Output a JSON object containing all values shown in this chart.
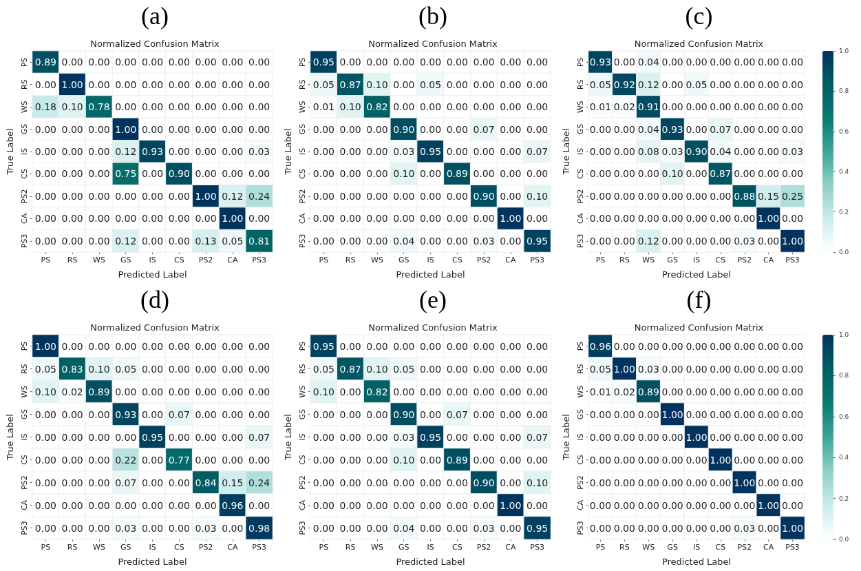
{
  "chart_data": [
    {
      "type": "heatmap",
      "title": "(a)",
      "subtitle": "Normalized Confusion Matrix",
      "xlabel": "Predicted Label",
      "ylabel": "True Label",
      "categories": [
        "PS",
        "RS",
        "WS",
        "GS",
        "IS",
        "CS",
        "PS2",
        "CA",
        "PS3"
      ],
      "y_categories": [
        "PS",
        "RS",
        "WS",
        "GS",
        "IS",
        "CS",
        "PS2",
        "CA",
        "PS3"
      ],
      "cells": [
        [
          0.89,
          0,
          0,
          0,
          0,
          0,
          0,
          0,
          0
        ],
        [
          0,
          1,
          0,
          0,
          0,
          0,
          0,
          0,
          0
        ],
        [
          0.18,
          0.1,
          0.78,
          0,
          0,
          0,
          0,
          0,
          0
        ],
        [
          0,
          0,
          0,
          1,
          0,
          0,
          0,
          0,
          0
        ],
        [
          0,
          0,
          0,
          0.12,
          0.93,
          0,
          0,
          0,
          0.03
        ],
        [
          0,
          0,
          0,
          0.75,
          0,
          0.9,
          0,
          0,
          0
        ],
        [
          0,
          0,
          0,
          0,
          0,
          0,
          1,
          0.12,
          0.24
        ],
        [
          0,
          0,
          0,
          0,
          0,
          0,
          0,
          1,
          0
        ],
        [
          0,
          0,
          0,
          0.12,
          0,
          0,
          0.13,
          0.05,
          0.81
        ]
      ],
      "cell_labels": [
        [
          "0.89",
          "0.00",
          "0.00",
          "0.00",
          "0.00",
          "0.00",
          "0.00",
          "0.00",
          "0.00"
        ],
        [
          "0.00",
          "1.00",
          "0.00",
          "0.00",
          "0.00",
          "0.00",
          "0.00",
          "0.00",
          "0.00"
        ],
        [
          "0.18",
          "0.10",
          "0.78",
          "0.00",
          "0.00",
          "0.00",
          "0.00",
          "0.00",
          "0.00"
        ],
        [
          "0.00",
          "0.00",
          "0.00",
          "1.00",
          "0.00",
          "0.00",
          "0.00",
          "0.00",
          "0.00"
        ],
        [
          "0.00",
          "0.00",
          "0.00",
          "0.12",
          "0.93",
          "0.00",
          "0.00",
          "0.00",
          "0.03"
        ],
        [
          "0.00",
          "0.00",
          "0.00",
          "0.75",
          "0.00",
          "0.90",
          "0.00",
          "0.00",
          "0.00"
        ],
        [
          "0.00",
          "0.00",
          "0.00",
          "0.00",
          "0.00",
          "0.00",
          "1.00",
          "0.12",
          "0.24"
        ],
        [
          "0.00",
          "0.00",
          "0.00",
          "0.00",
          "0.00",
          "0.00",
          "0.00",
          "1.00",
          "0.00"
        ],
        [
          "0.00",
          "0.00",
          "0.00",
          "0.12",
          "0.00",
          "0.00",
          "0.13",
          "0.05",
          "0.81"
        ]
      ]
    },
    {
      "type": "heatmap",
      "title": "(b)",
      "subtitle": "Normalized Confusion Matrix",
      "xlabel": "Predicted Label",
      "ylabel": "True Label",
      "categories": [
        "PS",
        "RS",
        "WS",
        "GS",
        "IS",
        "CS",
        "PS2",
        "CA",
        "PS3"
      ],
      "y_categories": [
        "PS",
        "RS",
        "WS",
        "GS",
        "IS",
        "CS",
        "PS2",
        "CA",
        "PS3"
      ],
      "cells": [
        [
          0.95,
          0,
          0,
          0,
          0,
          0,
          0,
          0,
          0
        ],
        [
          0.05,
          0.87,
          0.1,
          0,
          0.05,
          0,
          0,
          0,
          0
        ],
        [
          0.01,
          0.1,
          0.82,
          0,
          0,
          0,
          0,
          0,
          0
        ],
        [
          0,
          0,
          0,
          0.9,
          0,
          0,
          0.07,
          0,
          0
        ],
        [
          0,
          0,
          0,
          0.03,
          0.95,
          0,
          0,
          0,
          0.07
        ],
        [
          0,
          0,
          0,
          0.1,
          0,
          0.89,
          0,
          0,
          0
        ],
        [
          0,
          0,
          0,
          0,
          0,
          0,
          0.9,
          0,
          0.1
        ],
        [
          0,
          0,
          0,
          0,
          0,
          0,
          0,
          1,
          0
        ],
        [
          0,
          0,
          0,
          0.04,
          0,
          0,
          0.03,
          0,
          0.95
        ]
      ],
      "cell_labels": [
        [
          "0.95",
          "0.00",
          "0.00",
          "0.00",
          "0.00",
          "0.00",
          "0.00",
          "0.00",
          "0.00"
        ],
        [
          "0.05",
          "0.87",
          "0.10",
          "0.00",
          "0.05",
          "0.00",
          "0.00",
          "0.00",
          "0.00"
        ],
        [
          "0.01",
          "0.10",
          "0.82",
          "0.00",
          "0.00",
          "0.00",
          "0.00",
          "0.00",
          "0.00"
        ],
        [
          "0.00",
          "0.00",
          "0.00",
          "0.90",
          "0.00",
          "0.00",
          "0.07",
          "0.00",
          "0.00"
        ],
        [
          "0.00",
          "0.00",
          "0.00",
          "0.03",
          "0.95",
          "0.00",
          "0.00",
          "0.00",
          "0.07"
        ],
        [
          "0.00",
          "0.00",
          "0.00",
          "0.10",
          "0.00",
          "0.89",
          "0.00",
          "0.00",
          "0.00"
        ],
        [
          "0.00",
          "0.00",
          "0.00",
          "0.00",
          "0.00",
          "0.00",
          "0.90",
          "0.00",
          "0.10"
        ],
        [
          "0.00",
          "0.00",
          "0.00",
          "0.00",
          "0.00",
          "0.00",
          "0.00",
          "1.00",
          "0.00"
        ],
        [
          "0.00",
          "0.00",
          "0.00",
          "0.04",
          "0.00",
          "0.00",
          "0.03",
          "0.00",
          "0.95"
        ]
      ]
    },
    {
      "type": "heatmap",
      "title": "(c)",
      "subtitle": "Normalized Confusion Matrix",
      "xlabel": "Predicted Label",
      "ylabel": "True Label",
      "categories": [
        "PS",
        "RS",
        "WS",
        "GS",
        "IS",
        "CS",
        "PS2",
        "CA",
        "PS3"
      ],
      "y_categories": [
        "PS",
        "RS",
        "WS",
        "GS",
        "IS",
        "CS",
        "PS2",
        "CA",
        "PS3"
      ],
      "cells": [
        [
          0.93,
          0,
          0.04,
          0,
          0,
          0,
          0,
          0,
          0
        ],
        [
          0.05,
          0.92,
          0.12,
          0,
          0.05,
          0,
          0,
          0,
          0
        ],
        [
          0.01,
          0.02,
          0.91,
          0,
          0,
          0,
          0,
          0,
          0
        ],
        [
          0,
          0,
          0.04,
          0.93,
          0,
          0.07,
          0,
          0,
          0
        ],
        [
          0,
          0,
          0.08,
          0.03,
          0.9,
          0.04,
          0,
          0,
          0.03
        ],
        [
          0,
          0,
          0,
          0.1,
          0,
          0.87,
          0,
          0,
          0
        ],
        [
          0,
          0,
          0,
          0,
          0,
          0,
          0.88,
          0.15,
          0.25
        ],
        [
          0,
          0,
          0,
          0,
          0,
          0,
          0,
          1,
          0
        ],
        [
          0,
          0,
          0.12,
          0,
          0,
          0,
          0.03,
          0,
          1
        ]
      ],
      "cell_labels": [
        [
          "0.93",
          "0.00",
          "0.04",
          "0.00",
          "0.00",
          "0.00",
          "0.00",
          "0.00",
          "0.00"
        ],
        [
          "0.05",
          "0.92",
          "0.12",
          "0.00",
          "0.05",
          "0.00",
          "0.00",
          "0.00",
          "0.00"
        ],
        [
          "0.01",
          "0.02",
          "0.91",
          "0.00",
          "0.00",
          "0.00",
          "0.00",
          "0.00",
          "0.00"
        ],
        [
          "0.00",
          "0.00",
          "0.04",
          "0.93",
          "0.00",
          "0.07",
          "0.00",
          "0.00",
          "0.00"
        ],
        [
          "0.00",
          "0.00",
          "0.08",
          "0.03",
          "0.90",
          "0.04",
          "0.00",
          "0.00",
          "0.03"
        ],
        [
          "0.00",
          "0.00",
          "0.00",
          "0.10",
          "0.00",
          "0.87",
          "0.00",
          "0.00",
          "0.00"
        ],
        [
          "0.00",
          "0.00",
          "0.00",
          "0.00",
          "0.00",
          "0.00",
          "0.88",
          "0.15",
          "0.25"
        ],
        [
          "0.00",
          "0.00",
          "0.00",
          "0.00",
          "0.00",
          "0.00",
          "0.00",
          "1.00",
          "0.00"
        ],
        [
          "0.00",
          "0.00",
          "0.12",
          "0.00",
          "0.00",
          "0.00",
          "0.03",
          "0.00",
          "1.00"
        ]
      ],
      "clim": [
        0,
        1
      ],
      "cticks": [
        {
          "value": 0,
          "label": "0.0"
        },
        {
          "value": 0.2,
          "label": "0.2"
        },
        {
          "value": 0.4,
          "label": "0.4"
        },
        {
          "value": 0.6,
          "label": "0.6"
        },
        {
          "value": 0.8,
          "label": "0.8"
        },
        {
          "value": 1,
          "label": "1.0"
        }
      ]
    },
    {
      "type": "heatmap",
      "title": "(d)",
      "subtitle": "Normalized Confusion Matrix",
      "xlabel": "Predicted Label",
      "ylabel": "True Label",
      "categories": [
        "PS",
        "RS",
        "WS",
        "GS",
        "IS",
        "CS",
        "PS2",
        "CA",
        "PS3"
      ],
      "y_categories": [
        "PS",
        "RS",
        "WS",
        "GS",
        "IS",
        "CS",
        "PS2",
        "CA",
        "PS3"
      ],
      "cells": [
        [
          1,
          0,
          0,
          0,
          0,
          0,
          0,
          0,
          0
        ],
        [
          0.05,
          0.83,
          0.1,
          0.05,
          0,
          0,
          0,
          0,
          0
        ],
        [
          0.1,
          0.02,
          0.89,
          0,
          0,
          0,
          0,
          0,
          0
        ],
        [
          0,
          0,
          0,
          0.93,
          0,
          0.07,
          0,
          0,
          0
        ],
        [
          0,
          0,
          0,
          0,
          0.95,
          0,
          0,
          0,
          0.07
        ],
        [
          0,
          0,
          0,
          0.22,
          0,
          0.77,
          0,
          0,
          0
        ],
        [
          0,
          0,
          0,
          0.07,
          0,
          0,
          0.84,
          0.15,
          0.24
        ],
        [
          0,
          0,
          0,
          0,
          0,
          0,
          0,
          0.96,
          0
        ],
        [
          0,
          0,
          0,
          0.03,
          0,
          0,
          0.03,
          0,
          0.98
        ]
      ],
      "cell_labels": [
        [
          "1.00",
          "0.00",
          "0.00",
          "0.00",
          "0.00",
          "0.00",
          "0.00",
          "0.00",
          "0.00"
        ],
        [
          "0.05",
          "0.83",
          "0.10",
          "0.05",
          "0.00",
          "0.00",
          "0.00",
          "0.00",
          "0.00"
        ],
        [
          "0.10",
          "0.02",
          "0.89",
          "0.00",
          "0.00",
          "0.00",
          "0.00",
          "0.00",
          "0.00"
        ],
        [
          "0.00",
          "0.00",
          "0.00",
          "0.93",
          "0.00",
          "0.07",
          "0.00",
          "0.00",
          "0.00"
        ],
        [
          "0.00",
          "0.00",
          "0.00",
          "0.00",
          "0.95",
          "0.00",
          "0.00",
          "0.00",
          "0.07"
        ],
        [
          "0.00",
          "0.00",
          "0.00",
          "0.22",
          "0.00",
          "0.77",
          "0.00",
          "0.00",
          "0.00"
        ],
        [
          "0.00",
          "0.00",
          "0.00",
          "0.07",
          "0.00",
          "0.00",
          "0.84",
          "0.15",
          "0.24"
        ],
        [
          "0.00",
          "0.00",
          "0.00",
          "0.00",
          "0.00",
          "0.00",
          "0.00",
          "0.96",
          "0.00"
        ],
        [
          "0.00",
          "0.00",
          "0.00",
          "0.03",
          "0.00",
          "0.00",
          "0.03",
          "0.00",
          "0.98"
        ]
      ]
    },
    {
      "type": "heatmap",
      "title": "(e)",
      "subtitle": "Normalized Confusion Matrix",
      "xlabel": "Predicted Label",
      "ylabel": "True Label",
      "categories": [
        "PS",
        "RS",
        "WS",
        "GS",
        "IS",
        "CS",
        "PS2",
        "CA",
        "PS3"
      ],
      "y_categories": [
        "PS",
        "RS",
        "WS",
        "GS",
        "IS",
        "CS",
        "PS2",
        "CA",
        "PS3"
      ],
      "cells": [
        [
          0.95,
          0,
          0,
          0,
          0,
          0,
          0,
          0,
          0
        ],
        [
          0.05,
          0.87,
          0.1,
          0.05,
          0,
          0,
          0,
          0,
          0
        ],
        [
          0.1,
          0,
          0.82,
          0,
          0,
          0,
          0,
          0,
          0
        ],
        [
          0,
          0,
          0,
          0.9,
          0,
          0.07,
          0,
          0,
          0
        ],
        [
          0,
          0,
          0,
          0.03,
          0.95,
          0,
          0,
          0,
          0.07
        ],
        [
          0,
          0,
          0,
          0.1,
          0,
          0.89,
          0,
          0,
          0
        ],
        [
          0,
          0,
          0,
          0,
          0,
          0,
          0.9,
          0,
          0.1
        ],
        [
          0,
          0,
          0,
          0,
          0,
          0,
          0,
          1,
          0
        ],
        [
          0,
          0,
          0,
          0.04,
          0,
          0,
          0.03,
          0,
          0.95
        ]
      ],
      "cell_labels": [
        [
          "0.95",
          "0.00",
          "0.00",
          "0.00",
          "0.00",
          "0.00",
          "0.00",
          "0.00",
          "0.00"
        ],
        [
          "0.05",
          "0.87",
          "0.10",
          "0.05",
          "0.00",
          "0.00",
          "0.00",
          "0.00",
          "0.00"
        ],
        [
          "0.10",
          "0.00",
          "0.82",
          "0.00",
          "0.00",
          "0.00",
          "0.00",
          "0.00",
          "0.00"
        ],
        [
          "0.00",
          "0.00",
          "0.00",
          "0.90",
          "0.00",
          "0.07",
          "0.00",
          "0.00",
          "0.00"
        ],
        [
          "0.00",
          "0.00",
          "0.00",
          "0.03",
          "0.95",
          "0.00",
          "0.00",
          "0.00",
          "0.07"
        ],
        [
          "0.00",
          "0.00",
          "0.00",
          "0.10",
          "0.00",
          "0.89",
          "0.00",
          "0.00",
          "0.00"
        ],
        [
          "0.00",
          "0.00",
          "0.00",
          "0.00",
          "0.00",
          "0.00",
          "0.90",
          "0.00",
          "0.10"
        ],
        [
          "0.00",
          "0.00",
          "0.00",
          "0.00",
          "0.00",
          "0.00",
          "0.00",
          "1.00",
          "0.00"
        ],
        [
          "0.00",
          "0.00",
          "0.00",
          "0.04",
          "0.00",
          "0.00",
          "0.03",
          "0.00",
          "0.95"
        ]
      ]
    },
    {
      "type": "heatmap",
      "title": "(f)",
      "subtitle": "Normalized Confusion Matrix",
      "xlabel": "Predicted Label",
      "ylabel": "True Label",
      "categories": [
        "PS",
        "RS",
        "WS",
        "GS",
        "IS",
        "CS",
        "PS2",
        "CA",
        "PS3"
      ],
      "y_categories": [
        "PS",
        "RS",
        "WS",
        "GS",
        "IS",
        "CS",
        "PS2",
        "CA",
        "PS3"
      ],
      "cells": [
        [
          0.96,
          0,
          0,
          0,
          0,
          0,
          0,
          0,
          0
        ],
        [
          0.05,
          1,
          0.03,
          0,
          0,
          0,
          0,
          0,
          0
        ],
        [
          0.01,
          0.02,
          0.89,
          0,
          0,
          0,
          0,
          0,
          0
        ],
        [
          0,
          0,
          0,
          1,
          0,
          0,
          0,
          0,
          0
        ],
        [
          0,
          0,
          0,
          0,
          1,
          0,
          0,
          0,
          0
        ],
        [
          0,
          0,
          0,
          0,
          0,
          1,
          0,
          0,
          0
        ],
        [
          0,
          0,
          0,
          0,
          0,
          0,
          1,
          0,
          0
        ],
        [
          0,
          0,
          0,
          0,
          0,
          0,
          0,
          1,
          0
        ],
        [
          0,
          0,
          0,
          0,
          0,
          0,
          0.03,
          0,
          1
        ]
      ],
      "cell_labels": [
        [
          "0.96",
          "0.00",
          "0.00",
          "0.00",
          "0.00",
          "0.00",
          "0.00",
          "0.00",
          "0.00"
        ],
        [
          "0.05",
          "1.00",
          "0.03",
          "0.00",
          "0.00",
          "0.00",
          "0.00",
          "0.00",
          "0.00"
        ],
        [
          "0.01",
          "0.02",
          "0.89",
          "0.00",
          "0.00",
          "0.00",
          "0.00",
          "0.00",
          "0.00"
        ],
        [
          "0.00",
          "0.00",
          "0.00",
          "1.00",
          "0.00",
          "0.00",
          "0.00",
          "0.00",
          "0.00"
        ],
        [
          "0.00",
          "0.00",
          "0.00",
          "0.00",
          "1.00",
          "0.00",
          "0.00",
          "0.00",
          "0.00"
        ],
        [
          "0.00",
          "0.00",
          "0.00",
          "0.00",
          "0.00",
          "1.00",
          "0.00",
          "0.00",
          "0.00"
        ],
        [
          "0.00",
          "0.00",
          "0.00",
          "0.00",
          "0.00",
          "0.00",
          "1.00",
          "0.00",
          "0.00"
        ],
        [
          "0.00",
          "0.00",
          "0.00",
          "0.00",
          "0.00",
          "0.00",
          "0.00",
          "1.00",
          "0.00"
        ],
        [
          "0.00",
          "0.00",
          "0.00",
          "0.00",
          "0.00",
          "0.00",
          "0.03",
          "0.00",
          "1.00"
        ]
      ],
      "clim": [
        0,
        1
      ],
      "cticks": [
        {
          "value": 0,
          "label": "0.0"
        },
        {
          "value": 0.2,
          "label": "0.2"
        },
        {
          "value": 0.4,
          "label": "0.4"
        },
        {
          "value": 0.6,
          "label": "0.6"
        },
        {
          "value": 0.8,
          "label": "0.8"
        },
        {
          "value": 1,
          "label": "1.0"
        }
      ]
    }
  ]
}
